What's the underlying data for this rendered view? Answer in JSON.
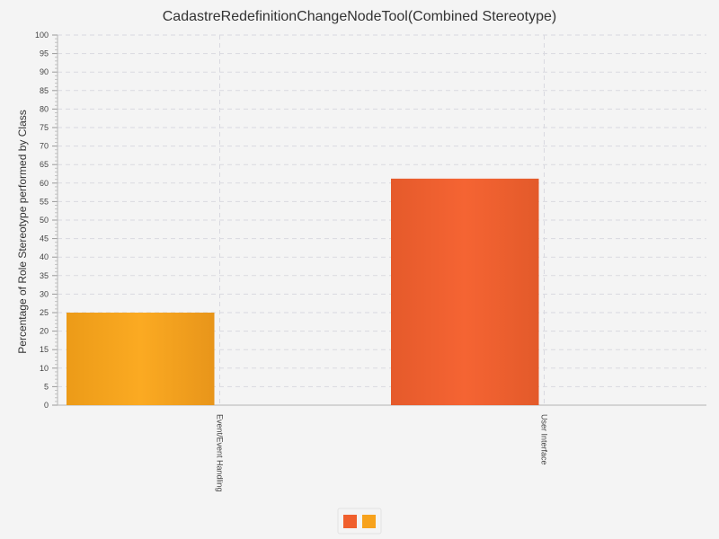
{
  "chart_data": {
    "type": "bar",
    "title": "CadastreRedefinitionChangeNodeTool(Combined Stereotype)",
    "xlabel": "",
    "ylabel": "Percentage of Role Stereotype performed by Class",
    "categories": [
      "Event/Event Handling",
      "User Interface"
    ],
    "values": [
      25,
      61.2
    ],
    "bar_colors": [
      "#f7a21c",
      "#f05f2d"
    ],
    "ylim": [
      0,
      100
    ],
    "y_ticks": [
      "0",
      "5",
      "10",
      "15",
      "20",
      "25",
      "30",
      "35",
      "40",
      "45",
      "50",
      "55",
      "60",
      "65",
      "70",
      "75",
      "80",
      "85",
      "90",
      "95",
      "100"
    ],
    "grid": true,
    "legend": {
      "placement": "bottom-center",
      "swatch_colors": [
        "#f05f2d",
        "#f7a21c"
      ]
    }
  }
}
